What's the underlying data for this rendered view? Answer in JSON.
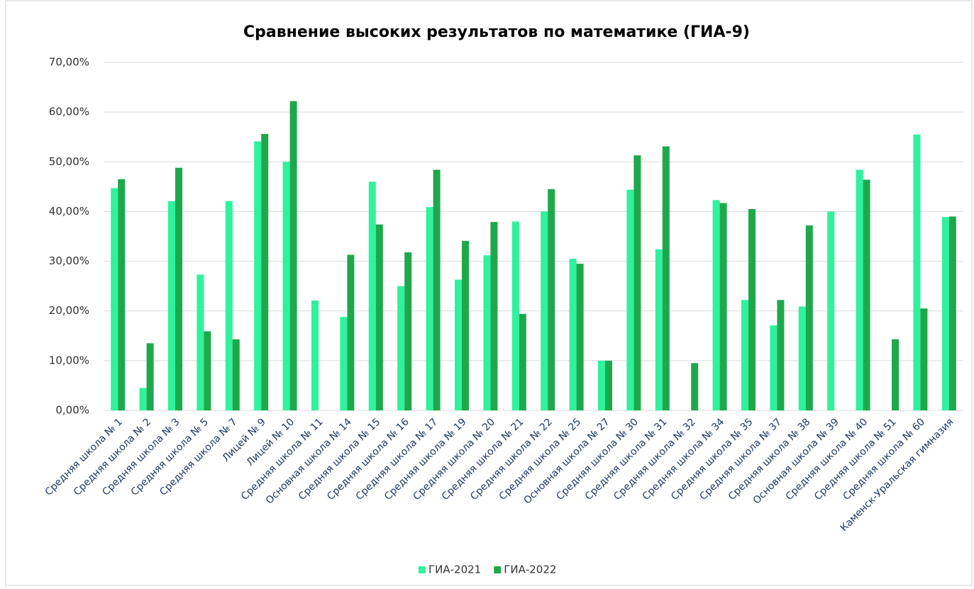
{
  "chart_data": {
    "type": "bar",
    "title": "Сравнение высоких результатов по математике (ГИА-9)",
    "categories": [
      "Средняя школа № 1",
      "Средняя школа № 2",
      "Средняя школа № 3",
      "Средняя школа № 5",
      "Средняя школа № 7",
      "Лицей № 9",
      "Лицей № 10",
      "Средняя школа № 11",
      "Основная школа № 14",
      "Средняя школа № 15",
      "Средняя школа № 16",
      "Средняя школа № 17",
      "Средняя школа № 19",
      "Средняя школа № 20",
      "Средняя школа № 21",
      "Средняя школа № 22",
      "Средняя школа № 25",
      "Основная школа № 27",
      "Средняя школа № 30",
      "Средняя школа № 31",
      "Средняя школа № 32",
      "Средняя школа № 34",
      "Средняя школа № 35",
      "Средняя школа № 37",
      "Средняя школа № 38",
      "Основная школа № 39",
      "Средняя школа № 40",
      "Средняя школа № 51",
      "Средняя школа № 60",
      "Каменск-Уральская гимназия"
    ],
    "series": [
      {
        "name": "ГИА-2021",
        "color": "#2ef29c",
        "values": [
          44.7,
          4.5,
          42.1,
          27.3,
          42.1,
          54.1,
          50.0,
          22.1,
          18.8,
          46.0,
          25.0,
          40.9,
          26.3,
          31.2,
          38.0,
          40.0,
          30.5,
          10.0,
          44.4,
          32.4,
          0,
          42.3,
          22.2,
          17.1,
          20.9,
          40.0,
          48.4,
          0,
          55.5,
          38.9
        ]
      },
      {
        "name": "ГИА-2022",
        "color": "#1ea84c",
        "values": [
          46.5,
          13.5,
          48.8,
          15.9,
          14.3,
          55.6,
          62.2,
          0,
          31.3,
          37.4,
          31.8,
          48.4,
          34.1,
          37.9,
          19.4,
          44.5,
          29.5,
          10.0,
          51.3,
          53.1,
          9.5,
          41.7,
          40.5,
          22.2,
          37.2,
          0,
          46.4,
          14.3,
          20.5,
          39.0
        ]
      }
    ],
    "ylim": [
      0,
      70
    ],
    "yticks": [
      {
        "value": 0,
        "label": "0,00%"
      },
      {
        "value": 10,
        "label": "10,00%"
      },
      {
        "value": 20,
        "label": "20,00%"
      },
      {
        "value": 30,
        "label": "30,00%"
      },
      {
        "value": 40,
        "label": "40,00%"
      },
      {
        "value": 50,
        "label": "50,00%"
      },
      {
        "value": 60,
        "label": "60,00%"
      },
      {
        "value": 70,
        "label": "70,00%"
      }
    ],
    "grid": true,
    "legend": "bottom"
  }
}
